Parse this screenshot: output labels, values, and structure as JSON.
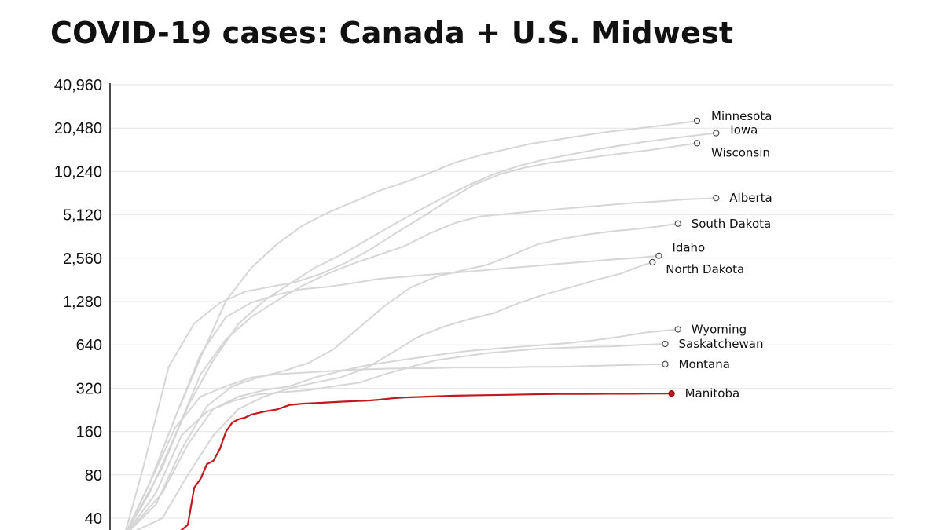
{
  "chart_data": {
    "type": "line",
    "title": "COVID-19 cases: Canada + U.S. Midwest",
    "y_scale": "log2",
    "ylim": [
      30,
      40960
    ],
    "y_ticks": [
      40,
      80,
      160,
      320,
      640,
      1280,
      2560,
      5120,
      10240,
      20480,
      40960
    ],
    "y_tick_labels": [
      "40",
      "80",
      "160",
      "320",
      "640",
      "1,280",
      "2,560",
      "5,120",
      "10,240",
      "20,480",
      "40,960"
    ],
    "xlim": [
      0,
      110
    ],
    "grid": true,
    "colors": {
      "background": "#ffffff",
      "context_line": "#d6d6d6",
      "highlight": "#c0181d",
      "grid": "#e4e4e4",
      "axis": "#111111"
    },
    "highlight_series": "Manitoba",
    "series": [
      {
        "name": "Minnesota",
        "label": "Minnesota",
        "x": [
          0,
          4,
          8,
          12,
          16,
          20,
          24,
          28,
          32,
          36,
          40,
          44,
          48,
          52,
          56,
          60,
          64,
          68,
          72,
          76,
          80,
          84,
          88,
          90
        ],
        "y": [
          30,
          70,
          200,
          520,
          1300,
          2200,
          3200,
          4300,
          5300,
          6300,
          7500,
          8600,
          10000,
          11800,
          13300,
          14600,
          16000,
          17000,
          18200,
          19300,
          20200,
          21200,
          22300,
          23000
        ]
      },
      {
        "name": "Iowa",
        "label": "Iowa",
        "x": [
          0,
          6,
          10,
          14,
          18,
          22,
          26,
          30,
          34,
          38,
          42,
          46,
          50,
          54,
          58,
          62,
          66,
          70,
          74,
          78,
          82,
          86,
          90,
          93
        ],
        "y": [
          30,
          90,
          240,
          500,
          900,
          1300,
          1700,
          2200,
          2700,
          3400,
          4300,
          5400,
          6700,
          8200,
          9800,
          11200,
          12400,
          13400,
          14500,
          15500,
          16500,
          17400,
          18300,
          18900
        ]
      },
      {
        "name": "Wisconsin",
        "label": "Wisconsin",
        "x": [
          0,
          3,
          7,
          11,
          15,
          19,
          23,
          27,
          31,
          35,
          39,
          43,
          47,
          51,
          55,
          59,
          63,
          67,
          71,
          75,
          79,
          83,
          87,
          90
        ],
        "y": [
          30,
          90,
          450,
          900,
          1250,
          1500,
          1620,
          1750,
          2000,
          2400,
          3000,
          3900,
          5000,
          6500,
          8300,
          9800,
          10900,
          11800,
          12400,
          13100,
          13800,
          14500,
          15400,
          16100
        ]
      },
      {
        "name": "Alberta",
        "label": "Alberta",
        "x": [
          0,
          4,
          8,
          12,
          16,
          20,
          24,
          28,
          32,
          36,
          40,
          44,
          48,
          52,
          56,
          60,
          64,
          68,
          72,
          76,
          80,
          84,
          88,
          93
        ],
        "y": [
          30,
          60,
          150,
          400,
          700,
          1000,
          1300,
          1650,
          2000,
          2350,
          2700,
          3100,
          3800,
          4500,
          5000,
          5200,
          5400,
          5600,
          5800,
          6000,
          6200,
          6350,
          6550,
          6700
        ]
      },
      {
        "name": "South Dakota",
        "label": "South Dakota",
        "x": [
          0,
          5,
          9,
          13,
          17,
          21,
          25,
          29,
          33,
          37,
          41,
          45,
          49,
          53,
          57,
          61,
          65,
          69,
          73,
          77,
          81,
          84,
          87
        ],
        "y": [
          30,
          50,
          120,
          240,
          330,
          380,
          420,
          480,
          600,
          850,
          1200,
          1600,
          1900,
          2100,
          2300,
          2700,
          3200,
          3500,
          3750,
          3950,
          4100,
          4250,
          4450
        ]
      },
      {
        "name": "Idaho",
        "label": "Idaho",
        "x": [
          0,
          4,
          8,
          12,
          16,
          20,
          24,
          28,
          32,
          36,
          40,
          44,
          48,
          52,
          56,
          60,
          64,
          68,
          72,
          76,
          80,
          84
        ],
        "y": [
          30,
          70,
          200,
          550,
          1000,
          1260,
          1430,
          1560,
          1620,
          1720,
          1840,
          1900,
          1970,
          2030,
          2100,
          2180,
          2250,
          2330,
          2410,
          2490,
          2560,
          2660
        ]
      },
      {
        "name": "North Dakota",
        "label": "North Dakota",
        "x": [
          0,
          6,
          10,
          14,
          18,
          22,
          26,
          30,
          34,
          38,
          42,
          46,
          50,
          54,
          58,
          62,
          66,
          70,
          74,
          78,
          81,
          83
        ],
        "y": [
          30,
          40,
          80,
          150,
          230,
          280,
          320,
          350,
          380,
          440,
          560,
          720,
          850,
          960,
          1060,
          1250,
          1430,
          1600,
          1800,
          2000,
          2250,
          2400
        ]
      },
      {
        "name": "Wyoming",
        "label": "Wyoming",
        "x": [
          0,
          6,
          10,
          14,
          18,
          22,
          26,
          30,
          34,
          38,
          42,
          46,
          50,
          54,
          58,
          62,
          66,
          70,
          74,
          78,
          82,
          87
        ],
        "y": [
          30,
          60,
          130,
          230,
          280,
          310,
          330,
          380,
          420,
          460,
          490,
          520,
          550,
          580,
          600,
          620,
          640,
          660,
          690,
          730,
          780,
          820
        ]
      },
      {
        "name": "Saskatchewan",
        "label": "Saskatchewan",
        "x": [
          0,
          5,
          9,
          13,
          17,
          21,
          25,
          29,
          33,
          37,
          41,
          45,
          49,
          53,
          57,
          61,
          65,
          69,
          73,
          77,
          81,
          85
        ],
        "y": [
          30,
          60,
          150,
          220,
          260,
          290,
          300,
          310,
          330,
          350,
          400,
          450,
          500,
          530,
          560,
          580,
          600,
          610,
          620,
          625,
          640,
          650
        ]
      },
      {
        "name": "Montana",
        "label": "Montana",
        "x": [
          0,
          4,
          8,
          12,
          16,
          20,
          24,
          28,
          32,
          36,
          40,
          44,
          48,
          52,
          56,
          60,
          64,
          68,
          72,
          76,
          80,
          85
        ],
        "y": [
          30,
          70,
          170,
          280,
          330,
          380,
          400,
          410,
          420,
          430,
          435,
          440,
          440,
          445,
          445,
          445,
          450,
          450,
          455,
          460,
          465,
          470
        ]
      },
      {
        "name": "Manitoba",
        "label": "Manitoba",
        "x": [
          7,
          9,
          10,
          11,
          12,
          13,
          14,
          15,
          16,
          17,
          18,
          19,
          20,
          22,
          24,
          26,
          28,
          30,
          32,
          34,
          36,
          38,
          40,
          42,
          44,
          46,
          48,
          52,
          56,
          60,
          64,
          68,
          72,
          76,
          80,
          84,
          86
        ],
        "y": [
          30,
          33,
          36,
          65,
          75,
          95,
          100,
          120,
          160,
          185,
          195,
          200,
          210,
          220,
          228,
          245,
          250,
          252,
          255,
          258,
          260,
          262,
          266,
          272,
          276,
          278,
          280,
          284,
          286,
          288,
          290,
          292,
          292,
          293,
          293,
          294,
          294
        ]
      }
    ]
  }
}
